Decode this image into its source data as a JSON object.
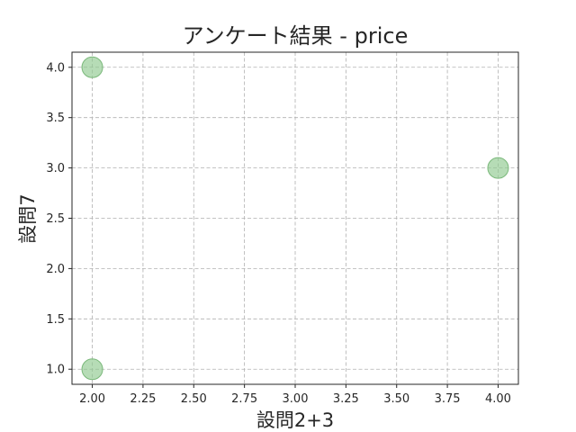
{
  "chart_data": {
    "type": "scatter",
    "title": "アンケート結果 - price",
    "xlabel": "設問2+3",
    "ylabel": "設問7",
    "xlim": [
      1.9,
      4.1
    ],
    "ylim": [
      0.85,
      4.15
    ],
    "x_ticks": [
      "2.00",
      "2.25",
      "2.50",
      "2.75",
      "3.00",
      "3.25",
      "3.50",
      "3.75",
      "4.00"
    ],
    "y_ticks": [
      "1.0",
      "1.5",
      "2.0",
      "2.5",
      "3.0",
      "3.5",
      "4.0"
    ],
    "grid": true,
    "grid_style": "dashed",
    "point_color": "#8fc98f",
    "point_edge_color": "#7ab87a",
    "points": [
      {
        "x": 2.0,
        "y": 4.0
      },
      {
        "x": 2.0,
        "y": 1.0
      },
      {
        "x": 4.0,
        "y": 3.0
      }
    ]
  }
}
